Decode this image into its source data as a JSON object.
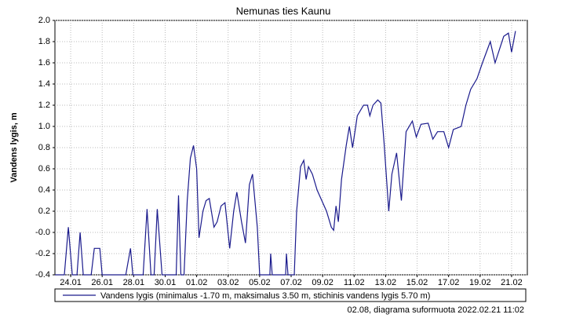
{
  "chart_data": {
    "type": "line",
    "title": "Nemunas ties Kaunu",
    "y_label": "Vandens lygis, m",
    "footer": "02.08,  diagrama suformuota 2022.02.21 11:02",
    "xlim": [
      -1,
      29
    ],
    "xticks": [
      {
        "value": 0,
        "label": "24.01"
      },
      {
        "value": 2,
        "label": "26.01"
      },
      {
        "value": 4,
        "label": "28.01"
      },
      {
        "value": 6,
        "label": "30.01"
      },
      {
        "value": 8,
        "label": "01.02"
      },
      {
        "value": 10,
        "label": "03.02"
      },
      {
        "value": 12,
        "label": "05.02"
      },
      {
        "value": 14,
        "label": "07.02"
      },
      {
        "value": 16,
        "label": "09.02"
      },
      {
        "value": 18,
        "label": "11.02"
      },
      {
        "value": 20,
        "label": "13.02"
      },
      {
        "value": 22,
        "label": "15.02"
      },
      {
        "value": 24,
        "label": "17.02"
      },
      {
        "value": 26,
        "label": "19.02"
      },
      {
        "value": 28,
        "label": "21.02"
      }
    ],
    "ylim": [
      -0.4,
      2.0
    ],
    "yticks": [
      -0.4,
      -0.2,
      {
        "value": 0,
        "label": "-0.0"
      },
      0.2,
      0.4,
      0.6,
      0.8,
      {
        "value": 1,
        "label": "1.0"
      },
      1.2,
      1.4,
      1.6,
      1.8,
      {
        "value": 2,
        "label": "2.0"
      }
    ],
    "grid": true,
    "x": [
      -1,
      -0.4,
      -0.15,
      0.1,
      0.4,
      0.6,
      0.8,
      1.3,
      1.5,
      1.85,
      2.0,
      3.5,
      3.8,
      3.95,
      4.6,
      4.85,
      5.1,
      5.3,
      5.5,
      5.8,
      6.7,
      6.85,
      7.0,
      7.2,
      7.4,
      7.6,
      7.8,
      8.0,
      8.15,
      8.4,
      8.6,
      8.8,
      9.1,
      9.3,
      9.55,
      9.8,
      10.1,
      10.35,
      10.55,
      10.85,
      11.1,
      11.35,
      11.55,
      11.85,
      12.0,
      12.65,
      12.7,
      12.8,
      13.65,
      13.7,
      13.8,
      14.2,
      14.35,
      14.6,
      14.8,
      14.95,
      15.1,
      15.35,
      15.65,
      15.95,
      16.25,
      16.55,
      16.7,
      16.85,
      17.0,
      17.2,
      17.5,
      17.7,
      17.9,
      18.2,
      18.6,
      18.85,
      19.0,
      19.2,
      19.5,
      19.7,
      19.9,
      20.2,
      20.4,
      20.7,
      21.0,
      21.3,
      21.7,
      21.95,
      22.25,
      22.7,
      23.0,
      23.3,
      23.7,
      24.0,
      24.3,
      24.8,
      25.1,
      25.4,
      25.8,
      26.15,
      26.65,
      26.95,
      27.5,
      27.8,
      28.0,
      28.25
    ],
    "series": [
      {
        "name": "Vandens lygis (minimalus -1.70 m, maksimalus 3.50 m, stichinis vandens lygis 5.70 m)",
        "color": "#1a1a8c",
        "values": [
          -0.4,
          -0.4,
          0.05,
          -0.4,
          -0.4,
          0.0,
          -0.4,
          -0.4,
          -0.15,
          -0.15,
          -0.4,
          -0.4,
          -0.15,
          -0.4,
          -0.4,
          0.22,
          -0.4,
          -0.4,
          0.22,
          -0.4,
          -0.4,
          0.35,
          -0.4,
          -0.4,
          0.3,
          0.7,
          0.82,
          0.6,
          -0.05,
          0.2,
          0.3,
          0.32,
          0.05,
          0.1,
          0.25,
          0.28,
          -0.15,
          0.2,
          0.38,
          0.1,
          -0.1,
          0.45,
          0.55,
          0.05,
          -0.4,
          -0.4,
          -0.2,
          -0.4,
          -0.4,
          -0.2,
          -0.4,
          -0.4,
          0.2,
          0.62,
          0.68,
          0.5,
          0.62,
          0.55,
          0.4,
          0.3,
          0.2,
          0.05,
          0.02,
          0.25,
          0.1,
          0.5,
          0.82,
          1.0,
          0.8,
          1.1,
          1.2,
          1.2,
          1.1,
          1.2,
          1.25,
          1.22,
          0.85,
          0.2,
          0.55,
          0.75,
          0.3,
          0.95,
          1.05,
          0.9,
          1.02,
          1.03,
          0.88,
          0.95,
          0.95,
          0.8,
          0.97,
          1.0,
          1.2,
          1.35,
          1.45,
          1.6,
          1.8,
          1.6,
          1.85,
          1.88,
          1.7,
          1.9
        ]
      }
    ]
  }
}
